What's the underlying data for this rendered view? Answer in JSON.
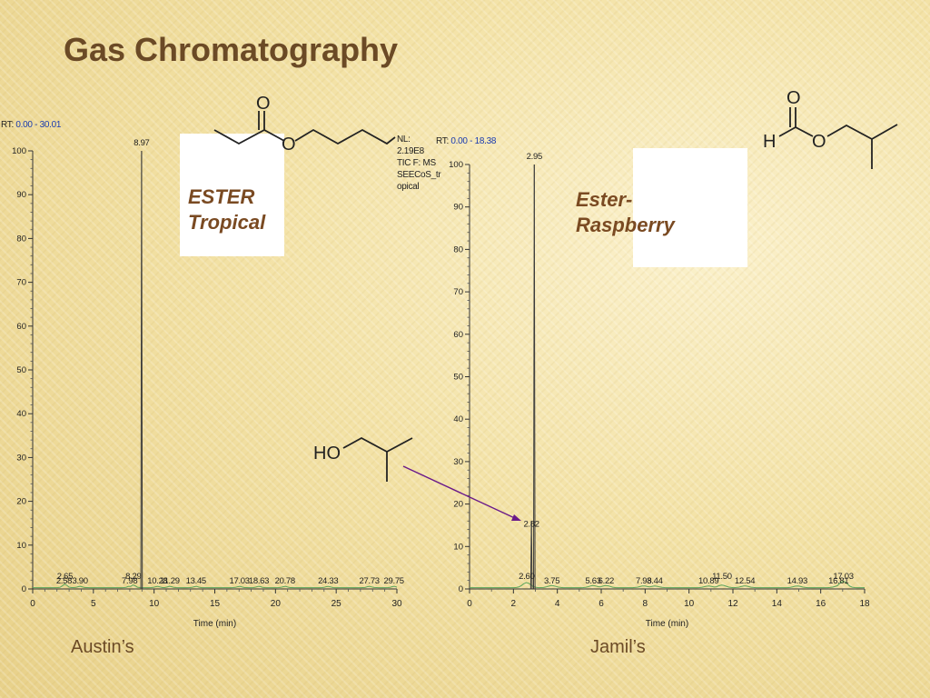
{
  "title": "Gas Chromatography",
  "caption_left": "Austin’s",
  "caption_right": "Jamil’s",
  "label_tropical": "ESTER Tropical",
  "label_raspberry": "Ester-Raspberry",
  "nl_block": "NL:\n2.19E8\nTIC F:  MS\nSEECoS_tr\nopical",
  "molecule_labels": {
    "tropical_carbonyl_o": "O",
    "tropical_ester_o": "O",
    "raspberry_carbonyl_o": "O",
    "raspberry_h": "H",
    "raspberry_ester_o": "O",
    "alcohol_label": "HO"
  },
  "colors": {
    "title": "#6b4a26",
    "trace": "#3a3a3a",
    "baseline_trace": "#5aa55a",
    "annotation_arrow": "#6a1a8a",
    "rt_value": "#1a3bb0"
  },
  "chart_data": [
    {
      "type": "line",
      "rt_label": "RT:",
      "rt_range_label": "0.00 - 30.01",
      "xlabel": "Time (min)",
      "ylabel": "",
      "xlim": [
        0,
        30
      ],
      "ylim": [
        0,
        100
      ],
      "xticks": [
        0,
        5,
        10,
        15,
        20,
        25,
        30
      ],
      "yticks": [
        0,
        10,
        20,
        30,
        40,
        50,
        60,
        70,
        80,
        90,
        100
      ],
      "peaks": [
        {
          "x": 8.97,
          "y": 100,
          "label": "8.97"
        },
        {
          "x": 2.58,
          "y": 0.4,
          "label": "2.58"
        },
        {
          "x": 2.65,
          "y": 0.8,
          "label": "2.65"
        },
        {
          "x": 3.9,
          "y": 0.3,
          "label": "3.90"
        },
        {
          "x": 7.98,
          "y": 0.3,
          "label": "7.98"
        },
        {
          "x": 8.29,
          "y": 0.6,
          "label": "8.29"
        },
        {
          "x": 10.28,
          "y": 0.3,
          "label": "10.28"
        },
        {
          "x": 11.29,
          "y": 0.3,
          "label": "11.29"
        },
        {
          "x": 13.45,
          "y": 0.3,
          "label": "13.45"
        },
        {
          "x": 17.03,
          "y": 0.3,
          "label": "17.03"
        },
        {
          "x": 18.63,
          "y": 0.3,
          "label": "18.63"
        },
        {
          "x": 20.78,
          "y": 0.3,
          "label": "20.78"
        },
        {
          "x": 24.33,
          "y": 0.3,
          "label": "24.33"
        },
        {
          "x": 27.73,
          "y": 0.3,
          "label": "27.73"
        },
        {
          "x": 29.75,
          "y": 0.3,
          "label": "29.75"
        }
      ],
      "grid": false,
      "legend": "none"
    },
    {
      "type": "line",
      "rt_label": "RT:",
      "rt_range_label": "0.00 - 18.38",
      "xlabel": "Time (min)",
      "ylabel": "",
      "xlim": [
        0,
        18
      ],
      "ylim": [
        0,
        100
      ],
      "xticks": [
        0,
        2,
        4,
        6,
        8,
        10,
        12,
        14,
        16,
        18
      ],
      "yticks": [
        0,
        10,
        20,
        30,
        40,
        50,
        60,
        70,
        80,
        90,
        100
      ],
      "peaks": [
        {
          "x": 2.95,
          "y": 100,
          "label": "2.95"
        },
        {
          "x": 2.82,
          "y": 16,
          "label": "2.82"
        },
        {
          "x": 2.6,
          "y": 1.2,
          "label": "2.60"
        },
        {
          "x": 3.75,
          "y": 0.5,
          "label": "3.75"
        },
        {
          "x": 5.63,
          "y": 0.5,
          "label": "5.63"
        },
        {
          "x": 6.22,
          "y": 0.5,
          "label": "6.22"
        },
        {
          "x": 7.93,
          "y": 0.4,
          "label": "7.93"
        },
        {
          "x": 8.44,
          "y": 0.4,
          "label": "8.44"
        },
        {
          "x": 10.89,
          "y": 0.4,
          "label": "10.89"
        },
        {
          "x": 11.5,
          "y": 0.6,
          "label": "11.50"
        },
        {
          "x": 12.54,
          "y": 0.4,
          "label": "12.54"
        },
        {
          "x": 14.93,
          "y": 0.4,
          "label": "14.93"
        },
        {
          "x": 16.81,
          "y": 0.4,
          "label": "16.81"
        },
        {
          "x": 17.03,
          "y": 1.5,
          "label": "17.03"
        }
      ],
      "grid": false,
      "legend": "none"
    }
  ]
}
